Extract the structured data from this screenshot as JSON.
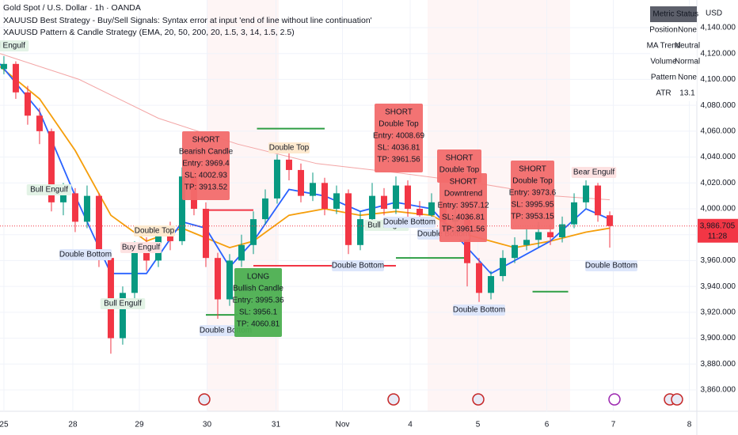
{
  "chart_data": {
    "type": "candlestick",
    "title": "Gold Spot / U.S. Dollar · 1h · OANDA",
    "indicators": [
      "XAUUSD Best Strategy - Buy/Sell Signals: Syntax error at input 'end of line without line continuation'",
      "XAUUSD Pattern & Candle Strategy (EMA, 20, 50, 200, 20, 1.5, 3, 14, 1.5, 2.5)"
    ],
    "currency": "USD",
    "open": [
      4108,
      4112,
      4090,
      4072,
      4060,
      4005,
      4012,
      3990,
      4010,
      3962,
      3900,
      3935,
      3968,
      3960,
      3980,
      3975,
      4025,
      4000,
      3962,
      3930,
      3960,
      3972,
      3992,
      4008,
      4038,
      4030,
      4010,
      4020,
      4000,
      4012,
      3972,
      3992,
      4010,
      4000,
      4018,
      4000,
      3995,
      4005,
      3990,
      3995,
      3958,
      3935,
      3948,
      3962,
      3972,
      3976,
      3982,
      3978,
      3988,
      4005,
      4018,
      3995
    ],
    "high": [
      4118,
      4114,
      4095,
      4078,
      4062,
      4020,
      4016,
      4018,
      4012,
      3966,
      3940,
      3975,
      3978,
      3985,
      3990,
      4032,
      4030,
      4005,
      3966,
      3965,
      3980,
      3998,
      4015,
      4042,
      4045,
      4035,
      4028,
      4024,
      4018,
      4015,
      3998,
      4020,
      4016,
      4025,
      4022,
      4006,
      4012,
      4010,
      4002,
      3998,
      3962,
      3952,
      3968,
      3978,
      3985,
      3990,
      3988,
      3994,
      4012,
      4022,
      4020,
      3998
    ],
    "low": [
      4104,
      4085,
      4065,
      4050,
      3998,
      3995,
      3982,
      3985,
      3955,
      3888,
      3895,
      3930,
      3952,
      3955,
      3968,
      3972,
      3995,
      3955,
      3915,
      3925,
      3955,
      3965,
      3988,
      4004,
      4022,
      4005,
      4006,
      3995,
      3996,
      3965,
      3968,
      3988,
      3995,
      3996,
      3992,
      3988,
      3990,
      3984,
      3982,
      3940,
      3928,
      3930,
      3944,
      3958,
      3968,
      3970,
      3972,
      3974,
      3985,
      4000,
      3990,
      3970
    ],
    "close": [
      4112,
      4090,
      4072,
      4060,
      4005,
      4012,
      3990,
      4010,
      3962,
      3900,
      3935,
      3968,
      3960,
      3980,
      3975,
      4025,
      4000,
      3962,
      3930,
      3960,
      3972,
      3992,
      4008,
      4038,
      4030,
      4010,
      4020,
      4000,
      4012,
      3972,
      3992,
      4010,
      4000,
      4018,
      4000,
      3995,
      4005,
      3990,
      3995,
      3958,
      3935,
      3948,
      3962,
      3972,
      3976,
      3982,
      3978,
      3988,
      4005,
      4018,
      3995,
      3986.705
    ],
    "up_color": "#089981",
    "down_color": "#f23645",
    "lines": [
      {
        "color": "#f3a5a5",
        "x": [
          -0.33,
          6.33,
          13,
          19.67,
          26.33,
          33,
          39.67,
          46.33,
          51
        ],
        "values": [
          4120,
          4100,
          4070,
          4050,
          4035,
          4028,
          4020,
          4010,
          4007
        ]
      },
      {
        "color": "#f59e0b",
        "x": [
          -0.33,
          3,
          6,
          9,
          12,
          15,
          19,
          21,
          24,
          27,
          30,
          33,
          36,
          39,
          43,
          46,
          49,
          51
        ],
        "values": [
          4110,
          4085,
          4045,
          3995,
          3975,
          3985,
          3970,
          3975,
          3995,
          4000,
          3995,
          3998,
          3995,
          3980,
          3970,
          3975,
          3982,
          3985
        ]
      },
      {
        "color": "#2962ff",
        "x": [
          -0.33,
          3,
          6,
          9,
          12,
          15,
          17,
          19,
          21,
          24,
          27,
          30,
          33,
          36,
          39,
          41,
          43,
          46,
          49,
          51
        ],
        "values": [
          4112,
          4075,
          4010,
          3950,
          3950,
          3990,
          3985,
          3955,
          3975,
          4015,
          4010,
          3998,
          4005,
          4000,
          3970,
          3950,
          3960,
          3975,
          4000,
          3992
        ]
      }
    ],
    "levels": [
      {
        "color": "#2e9e44",
        "price": 4062,
        "from": 21.3,
        "to": 27
      },
      {
        "color": "#f23645",
        "price": 3999,
        "from": 17,
        "to": 21
      },
      {
        "color": "#f23645",
        "price": 3956,
        "from": 21,
        "to": 33
      },
      {
        "color": "#2e9e44",
        "price": 3962,
        "from": 33,
        "to": 39
      },
      {
        "color": "#2e9e44",
        "price": 3936,
        "from": 44.5,
        "to": 47.5
      },
      {
        "color": "#2e9e44",
        "price": 3918,
        "from": 17,
        "to": 19.7
      }
    ],
    "signals": [
      {
        "color": "#f26b6b",
        "lines": [
          "SHORT",
          "Bearish Candle",
          "Entry: 3969.4",
          "SL: 4002.93",
          "TP: 3913.52"
        ]
      },
      {
        "color": "#4caf50",
        "lines": [
          "LONG",
          "Bullish Candle",
          "Entry: 3995.36",
          "SL: 3956.1",
          "TP: 4060.81"
        ]
      },
      {
        "color": "#f26b6b",
        "lines": [
          "SHORT",
          "Double Top",
          "Entry: 4008.69",
          "SL: 4036.81",
          "TP: 3961.56"
        ]
      },
      {
        "color": "#f26b6b",
        "lines": [
          "SHORT",
          "Double Top"
        ]
      },
      {
        "color": "#f26b6b",
        "lines": [
          "SHORT",
          "Downtrend",
          "Entry: 3957.12",
          "SL: 4036.81",
          "TP: 3961.56"
        ]
      },
      {
        "color": "#f26b6b",
        "lines": [
          "SHORT",
          "Double Top",
          "Entry: 3973.6",
          "SL: 3995.95",
          "TP: 3953.15"
        ]
      }
    ],
    "patterns": [
      "Bull Engulf",
      "Double Bottom",
      "Bull Engulf",
      "Buy Engulf",
      "Bull Engulf",
      "Double Top",
      "Double Bottom",
      "Double Top",
      "Bull Engulf",
      "Double Bottom",
      "Double Bottom",
      "Double Bottom",
      "Double Bottom",
      "Bear Engulf",
      "Double Bottom"
    ],
    "table": {
      "header": [
        "Metric",
        "Status"
      ],
      "rows": [
        [
          "Position",
          "None"
        ],
        [
          "MA Trend",
          "Neutral"
        ],
        [
          "Volume",
          "Normal"
        ],
        [
          "Pattern",
          "None"
        ],
        [
          "ATR",
          "13.1"
        ]
      ]
    },
    "price_marker": {
      "value": 3986.705,
      "label": "3,986.705",
      "time": "11:28"
    },
    "xlim": [
      -0.33,
      58.33
    ],
    "xticks": [
      {
        "value": 0,
        "label": "25"
      },
      {
        "value": 5.8,
        "label": "28"
      },
      {
        "value": 11.4,
        "label": "29"
      },
      {
        "value": 17.1,
        "label": "30"
      },
      {
        "value": 22.9,
        "label": "31"
      },
      {
        "value": 28.5,
        "label": "Nov"
      },
      {
        "value": 34.2,
        "label": "4"
      },
      {
        "value": 39.9,
        "label": "5"
      },
      {
        "value": 45.7,
        "label": "6"
      },
      {
        "value": 51.3,
        "label": "7"
      },
      {
        "value": 57.7,
        "label": "8"
      }
    ],
    "ylim": [
      3843.5,
      4161.4
    ],
    "yticks": [
      {
        "value": 3860,
        "label": "3,860.000"
      },
      {
        "value": 3880,
        "label": "3,880.000"
      },
      {
        "value": 3900,
        "label": "3,900.000"
      },
      {
        "value": 3920,
        "label": "3,920.000"
      },
      {
        "value": 3940,
        "label": "3,940.000"
      },
      {
        "value": 3960,
        "label": "3,960.000"
      },
      {
        "value": 3980,
        "label": "3,980.000"
      },
      {
        "value": 4000,
        "label": "4,000.000"
      },
      {
        "value": 4020,
        "label": "4,020.000"
      },
      {
        "value": 4040,
        "label": "4,040.000"
      },
      {
        "value": 4060,
        "label": "4,060.000"
      },
      {
        "value": 4080,
        "label": "4,080.000"
      },
      {
        "value": 4100,
        "label": "4,100.000"
      },
      {
        "value": 4120,
        "label": "4,120.000"
      },
      {
        "value": 4140,
        "label": "4,140.000"
      }
    ]
  }
}
